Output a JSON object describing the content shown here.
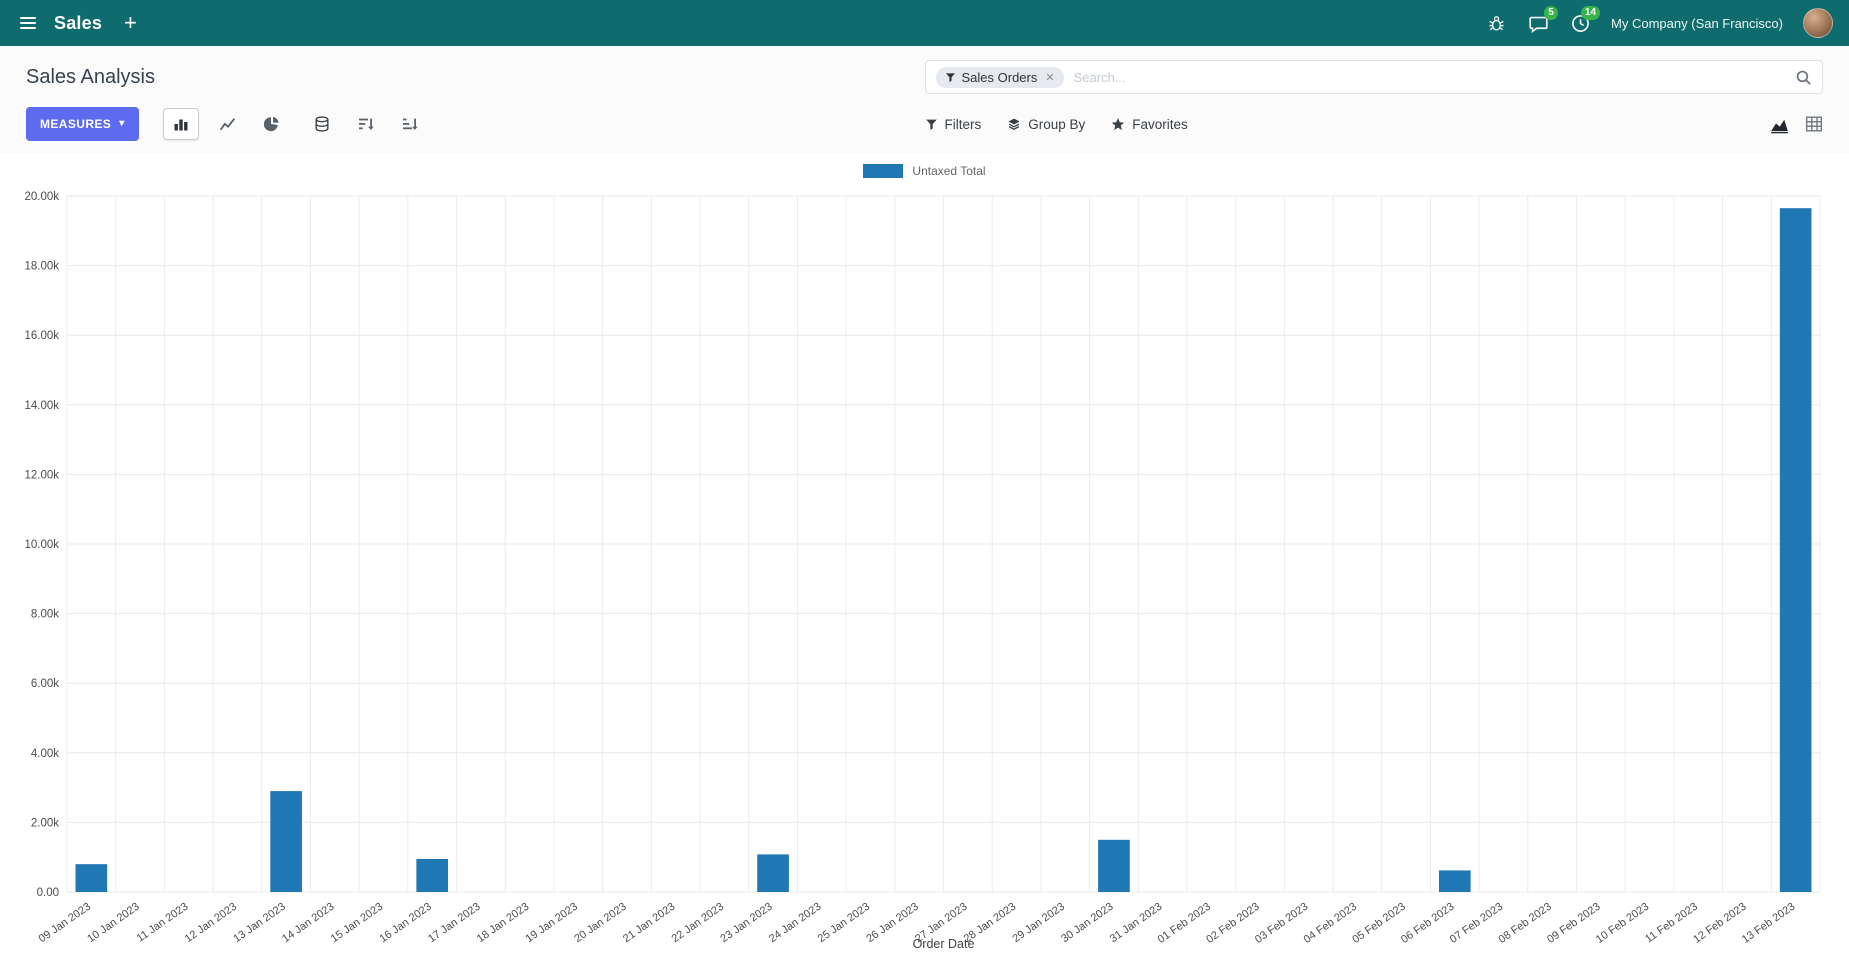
{
  "colors": {
    "navbar_bg": "#0e6c6e",
    "primary_button": "#5c6bef",
    "bar_series": "#1f77b4",
    "badge_green": "#38b44a"
  },
  "navbar": {
    "app_name": "Sales",
    "plus_label": "+",
    "messages_badge": "5",
    "activities_badge": "14",
    "company": "My Company (San Francisco)"
  },
  "control_panel": {
    "title": "Sales Analysis",
    "measures_label": "MEASURES",
    "filters_label": "Filters",
    "group_by_label": "Group By",
    "favorites_label": "Favorites",
    "search": {
      "facet": "Sales Orders",
      "facet_remove": "✕",
      "placeholder": "Search..."
    }
  },
  "chart_data": {
    "type": "bar",
    "title": "",
    "legend": [
      "Untaxed Total"
    ],
    "series_color": "#1f77b4",
    "xlabel": "Order Date",
    "ylabel": "",
    "ylim": [
      0,
      20000
    ],
    "grid": true,
    "legend_position": "top-center",
    "y_ticks": [
      {
        "value": 0,
        "label": "0.00"
      },
      {
        "value": 2000,
        "label": "2.00k"
      },
      {
        "value": 4000,
        "label": "4.00k"
      },
      {
        "value": 6000,
        "label": "6.00k"
      },
      {
        "value": 8000,
        "label": "8.00k"
      },
      {
        "value": 10000,
        "label": "10.00k"
      },
      {
        "value": 12000,
        "label": "12.00k"
      },
      {
        "value": 14000,
        "label": "14.00k"
      },
      {
        "value": 16000,
        "label": "16.00k"
      },
      {
        "value": 18000,
        "label": "18.00k"
      },
      {
        "value": 20000,
        "label": "20.00k"
      }
    ],
    "categories": [
      "09 Jan 2023",
      "10 Jan 2023",
      "11 Jan 2023",
      "12 Jan 2023",
      "13 Jan 2023",
      "14 Jan 2023",
      "15 Jan 2023",
      "16 Jan 2023",
      "17 Jan 2023",
      "18 Jan 2023",
      "19 Jan 2023",
      "20 Jan 2023",
      "21 Jan 2023",
      "22 Jan 2023",
      "23 Jan 2023",
      "24 Jan 2023",
      "25 Jan 2023",
      "26 Jan 2023",
      "27 Jan 2023",
      "28 Jan 2023",
      "29 Jan 2023",
      "30 Jan 2023",
      "31 Jan 2023",
      "01 Feb 2023",
      "02 Feb 2023",
      "03 Feb 2023",
      "04 Feb 2023",
      "05 Feb 2023",
      "06 Feb 2023",
      "07 Feb 2023",
      "08 Feb 2023",
      "09 Feb 2023",
      "10 Feb 2023",
      "11 Feb 2023",
      "12 Feb 2023",
      "13 Feb 2023"
    ],
    "values": [
      800,
      0,
      0,
      0,
      2900,
      0,
      0,
      950,
      0,
      0,
      0,
      0,
      0,
      0,
      1080,
      0,
      0,
      0,
      0,
      0,
      0,
      1500,
      0,
      0,
      0,
      0,
      0,
      0,
      620,
      0,
      0,
      0,
      0,
      0,
      0,
      19650
    ]
  }
}
